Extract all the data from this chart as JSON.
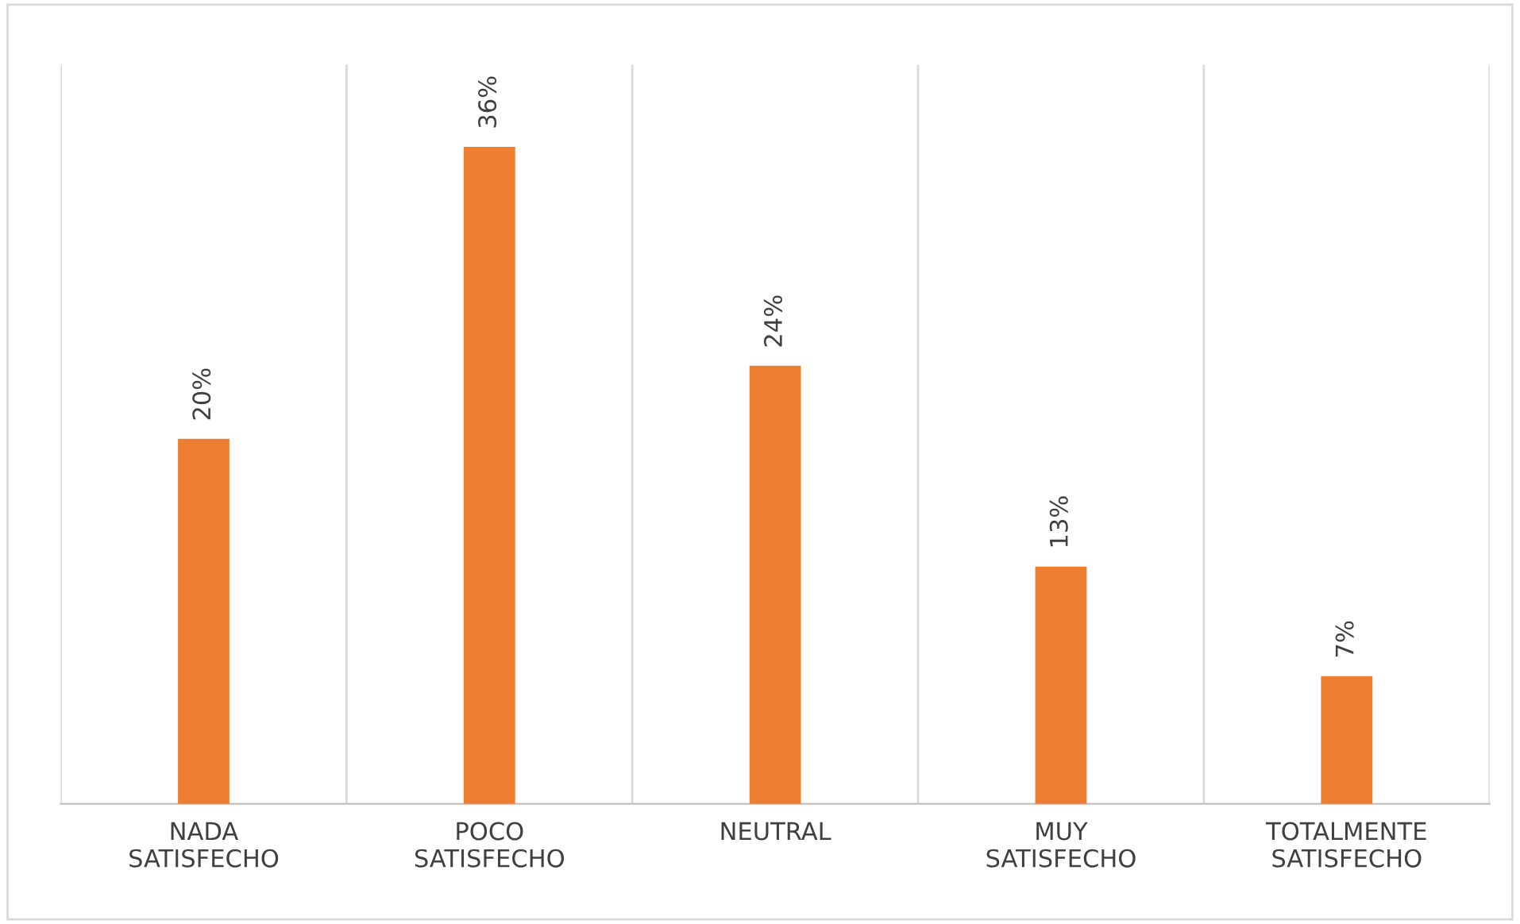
{
  "chart_data": {
    "type": "bar",
    "categories": [
      "NADA SATISFECHO",
      "POCO SATISFECHO",
      "NEUTRAL",
      "MUY SATISFECHO",
      "TOTALMENTE SATISFECHO"
    ],
    "values": [
      20,
      36,
      24,
      13,
      7
    ],
    "color": "#ed7d31",
    "value_labels": [
      "20%",
      "36%",
      "24%",
      "13%",
      "7%"
    ],
    "grid": "x"
  }
}
